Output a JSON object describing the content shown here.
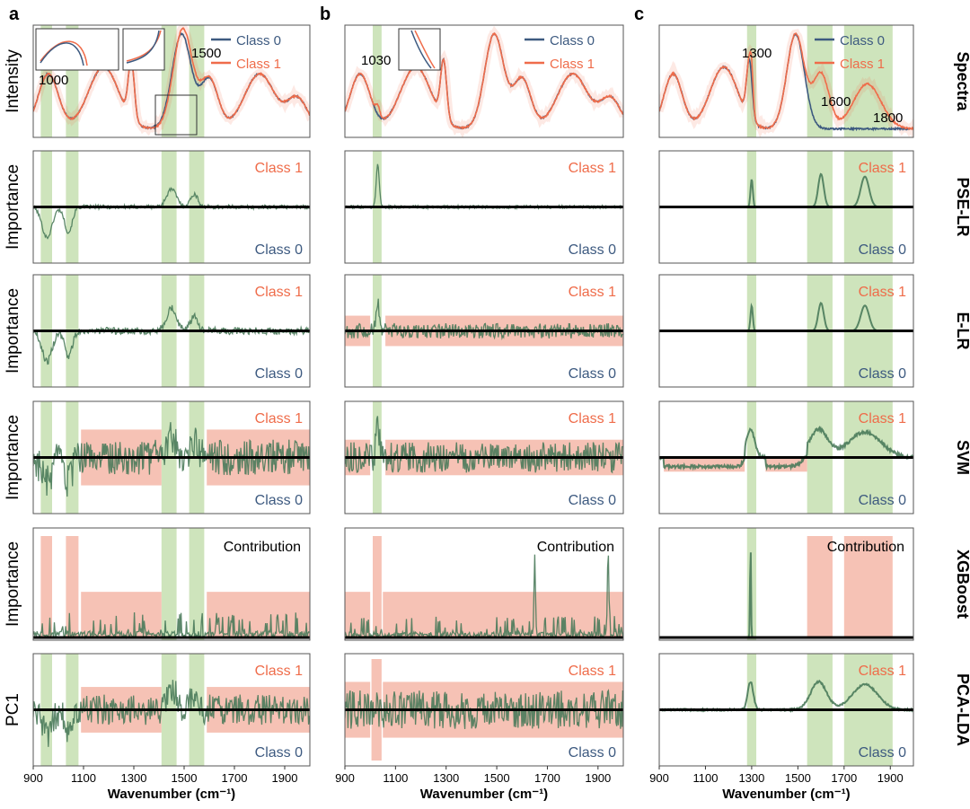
{
  "colors": {
    "class0": "#3d5a80",
    "class1": "#ef6c4a",
    "green_band": "#c5dfb0",
    "red_band": "#f4b7a8",
    "importance_line": "#4a7a5a",
    "axis_line": "#000000"
  },
  "column_labels": [
    "a",
    "b",
    "c"
  ],
  "row_labels": [
    "Spectra",
    "PSE-LR",
    "E-LR",
    "SVM",
    "XGBoost",
    "PCA-LDA"
  ],
  "y_labels": [
    "Intensity",
    "Importance",
    "Importance",
    "Importance",
    "Importance",
    "PC1"
  ],
  "x_label": "Wavenumber (cm⁻¹)",
  "x_ticks": [
    "900",
    "1100",
    "1300",
    "1500",
    "1700",
    "1900"
  ],
  "legend": {
    "class0": "Class 0",
    "class1": "Class 1"
  },
  "annotations": {
    "class1": "Class 1",
    "class0": "Class 0",
    "contribution": "Contribution",
    "a_peak_1000": "1000",
    "a_peak_1500": "1500",
    "b_peak_1030": "1030",
    "c_peak_1300": "1300",
    "c_peak_1600": "1600",
    "c_peak_1800": "1800"
  },
  "chart_data": {
    "type": "line",
    "title": "",
    "xlabel": "Wavenumber (cm⁻¹)",
    "xlim": [
      900,
      2000
    ],
    "columns": [
      {
        "label": "a",
        "spectra": {
          "class0_peaks": [
            [
              960,
              40,
              0.55
            ],
            [
              1180,
              60,
              0.62
            ],
            [
              1290,
              12,
              0.58
            ],
            [
              1490,
              38,
              0.95
            ],
            [
              1600,
              35,
              0.5
            ],
            [
              1800,
              60,
              0.55
            ],
            [
              1950,
              40,
              0.3
            ]
          ],
          "class1_peaks": [
            [
              960,
              40,
              0.55
            ],
            [
              1180,
              60,
              0.62
            ],
            [
              1290,
              12,
              0.58
            ],
            [
              1495,
              38,
              1.0
            ],
            [
              1600,
              35,
              0.5
            ],
            [
              1800,
              60,
              0.55
            ],
            [
              1950,
              40,
              0.3
            ]
          ],
          "green_bands": [
            [
              930,
              975
            ],
            [
              1030,
              1080
            ],
            [
              1410,
              1470
            ],
            [
              1520,
              1580
            ]
          ]
        },
        "rows": {
          "PSE-LR": {
            "green_bands": [
              [
                930,
                975
              ],
              [
                1030,
                1080
              ],
              [
                1410,
                1470
              ],
              [
                1520,
                1580
              ]
            ],
            "red_bands": [],
            "noise": 0.04,
            "signal": [
              [
                955,
                20,
                -0.6
              ],
              [
                1040,
                15,
                -0.5
              ],
              [
                1450,
                20,
                0.35
              ],
              [
                1540,
                15,
                0.25
              ]
            ]
          },
          "E-LR": {
            "green_bands": [
              [
                930,
                975
              ],
              [
                1030,
                1080
              ],
              [
                1410,
                1470
              ],
              [
                1520,
                1580
              ]
            ],
            "red_bands": [],
            "noise": 0.07,
            "signal": [
              [
                955,
                20,
                -0.6
              ],
              [
                1040,
                15,
                -0.5
              ],
              [
                1450,
                20,
                0.45
              ],
              [
                1540,
                15,
                0.3
              ]
            ]
          },
          "SVM": {
            "green_bands": [
              [
                930,
                975
              ],
              [
                1030,
                1080
              ],
              [
                1410,
                1470
              ],
              [
                1520,
                1580
              ]
            ],
            "red_bands": [
              [
                1090,
                1410,
                -0.55,
                0.55
              ],
              [
                1590,
                2000,
                -0.55,
                0.55
              ]
            ],
            "noise": 0.35,
            "signal": [
              [
                955,
                20,
                -0.5
              ],
              [
                1040,
                15,
                -0.5
              ],
              [
                1450,
                20,
                0.4
              ],
              [
                1540,
                15,
                0.3
              ]
            ]
          },
          "XGBoost": {
            "green_bands": [
              [
                1410,
                1470
              ],
              [
                1520,
                1580
              ]
            ],
            "red_bands": [
              [
                930,
                975,
                0,
                1.0
              ],
              [
                1030,
                1080,
                0,
                1.0
              ],
              [
                1090,
                1410,
                0,
                0.45
              ],
              [
                1590,
                2000,
                0,
                0.45
              ]
            ],
            "noise": 0.25,
            "signal": [],
            "positive_only": true
          },
          "PCA-LDA": {
            "green_bands": [
              [
                930,
                975
              ],
              [
                1030,
                1080
              ],
              [
                1410,
                1470
              ],
              [
                1520,
                1580
              ]
            ],
            "red_bands": [
              [
                1090,
                1410,
                -0.45,
                0.45
              ],
              [
                1590,
                2000,
                -0.45,
                0.45
              ]
            ],
            "noise": 0.3,
            "signal": [
              [
                955,
                20,
                -0.5
              ],
              [
                1040,
                15,
                -0.4
              ],
              [
                1450,
                20,
                0.4
              ],
              [
                1540,
                15,
                0.3
              ]
            ]
          }
        }
      },
      {
        "label": "b",
        "spectra": {
          "class0_peaks": [
            [
              960,
              40,
              0.55
            ],
            [
              1180,
              60,
              0.62
            ],
            [
              1290,
              12,
              0.58
            ],
            [
              1490,
              38,
              0.95
            ],
            [
              1600,
              35,
              0.5
            ],
            [
              1800,
              60,
              0.55
            ],
            [
              1950,
              40,
              0.3
            ]
          ],
          "class1_peaks": [
            [
              960,
              40,
              0.55
            ],
            [
              1180,
              60,
              0.62
            ],
            [
              1290,
              12,
              0.58
            ],
            [
              1490,
              38,
              0.95
            ],
            [
              1600,
              35,
              0.5
            ],
            [
              1800,
              60,
              0.55
            ],
            [
              1950,
              40,
              0.3
            ],
            [
              1030,
              8,
              0.1
            ]
          ],
          "green_bands": [
            [
              1010,
              1045
            ]
          ]
        },
        "rows": {
          "PSE-LR": {
            "green_bands": [
              [
                1010,
                1045
              ]
            ],
            "red_bands": [],
            "noise": 0.03,
            "signal": [
              [
                1030,
                6,
                0.85
              ]
            ]
          },
          "E-LR": {
            "green_bands": [
              [
                1010,
                1045
              ]
            ],
            "red_bands": [
              [
                900,
                1000,
                -0.3,
                0.3
              ],
              [
                1060,
                2000,
                -0.3,
                0.3
              ]
            ],
            "noise": 0.15,
            "signal": [
              [
                1030,
                6,
                0.6
              ]
            ]
          },
          "SVM": {
            "green_bands": [
              [
                1010,
                1045
              ]
            ],
            "red_bands": [
              [
                900,
                1000,
                -0.35,
                0.35
              ],
              [
                1060,
                2000,
                -0.35,
                0.35
              ]
            ],
            "noise": 0.3,
            "signal": [
              [
                1030,
                6,
                0.7
              ]
            ]
          },
          "XGBoost": {
            "green_bands": [],
            "red_bands": [
              [
                1010,
                1045,
                0,
                1.0
              ],
              [
                900,
                1000,
                0,
                0.45
              ],
              [
                1050,
                2000,
                0,
                0.45
              ]
            ],
            "noise": 0.22,
            "signal": [
              [
                1650,
                3,
                0.75
              ],
              [
                1940,
                3,
                0.8
              ]
            ],
            "positive_only": true
          },
          "PCA-LDA": {
            "green_bands": [],
            "red_bands": [
              [
                1005,
                1045,
                -1.0,
                1.0
              ],
              [
                900,
                1000,
                -0.55,
                0.55
              ],
              [
                1050,
                2000,
                -0.55,
                0.55
              ]
            ],
            "noise": 0.38,
            "signal": []
          }
        }
      },
      {
        "label": "c",
        "spectra": {
          "class0_peaks": [
            [
              960,
              40,
              0.55
            ],
            [
              1180,
              60,
              0.62
            ],
            [
              1290,
              12,
              0.58
            ],
            [
              1490,
              38,
              0.95
            ]
          ],
          "class1_peaks": [
            [
              960,
              40,
              0.55
            ],
            [
              1180,
              60,
              0.62
            ],
            [
              1290,
              12,
              0.58
            ],
            [
              1490,
              38,
              0.95
            ],
            [
              1300,
              6,
              0.2
            ],
            [
              1600,
              35,
              0.55
            ],
            [
              1800,
              60,
              0.45
            ]
          ],
          "green_bands": [
            [
              1280,
              1320
            ],
            [
              1540,
              1650
            ],
            [
              1700,
              1910
            ]
          ]
        },
        "rows": {
          "PSE-LR": {
            "green_bands": [
              [
                1280,
                1320
              ],
              [
                1540,
                1650
              ],
              [
                1700,
                1910
              ]
            ],
            "red_bands": [],
            "noise": 0.0,
            "signal": [
              [
                1300,
                5,
                0.55
              ],
              [
                1600,
                12,
                0.65
              ],
              [
                1790,
                18,
                0.6
              ]
            ]
          },
          "E-LR": {
            "green_bands": [
              [
                1280,
                1320
              ],
              [
                1540,
                1650
              ],
              [
                1700,
                1910
              ]
            ],
            "red_bands": [],
            "noise": 0.0,
            "signal": [
              [
                1300,
                5,
                0.5
              ],
              [
                1600,
                12,
                0.55
              ],
              [
                1790,
                18,
                0.5
              ]
            ]
          },
          "SVM": {
            "green_bands": [
              [
                1280,
                1320
              ],
              [
                1540,
                1650
              ],
              [
                1700,
                1910
              ]
            ],
            "red_bands": [
              [
                920,
                1270,
                -0.28,
                0
              ],
              [
                1360,
                1540,
                -0.28,
                0
              ]
            ],
            "noise": 0.03,
            "signal": [
              [
                1295,
                18,
                0.55
              ],
              [
                1590,
                40,
                0.55
              ],
              [
                1790,
                70,
                0.5
              ]
            ],
            "neg_segments": [
              [
                920,
                1270,
                -0.18
              ],
              [
                1360,
                1540,
                -0.18
              ]
            ]
          },
          "XGBoost": {
            "green_bands": [
              [
                1280,
                1320
              ]
            ],
            "red_bands": [
              [
                1540,
                1650,
                0,
                1.0
              ],
              [
                1700,
                1910,
                0,
                1.0
              ]
            ],
            "noise": 0.0,
            "signal": [
              [
                1295,
                2,
                0.95
              ]
            ],
            "positive_only": true
          },
          "PCA-LDA": {
            "green_bands": [
              [
                1280,
                1320
              ],
              [
                1540,
                1650
              ],
              [
                1700,
                1910
              ]
            ],
            "red_bands": [],
            "noise": 0.02,
            "signal": [
              [
                1295,
                12,
                0.55
              ],
              [
                1590,
                35,
                0.55
              ],
              [
                1790,
                55,
                0.5
              ]
            ]
          }
        }
      }
    ]
  }
}
